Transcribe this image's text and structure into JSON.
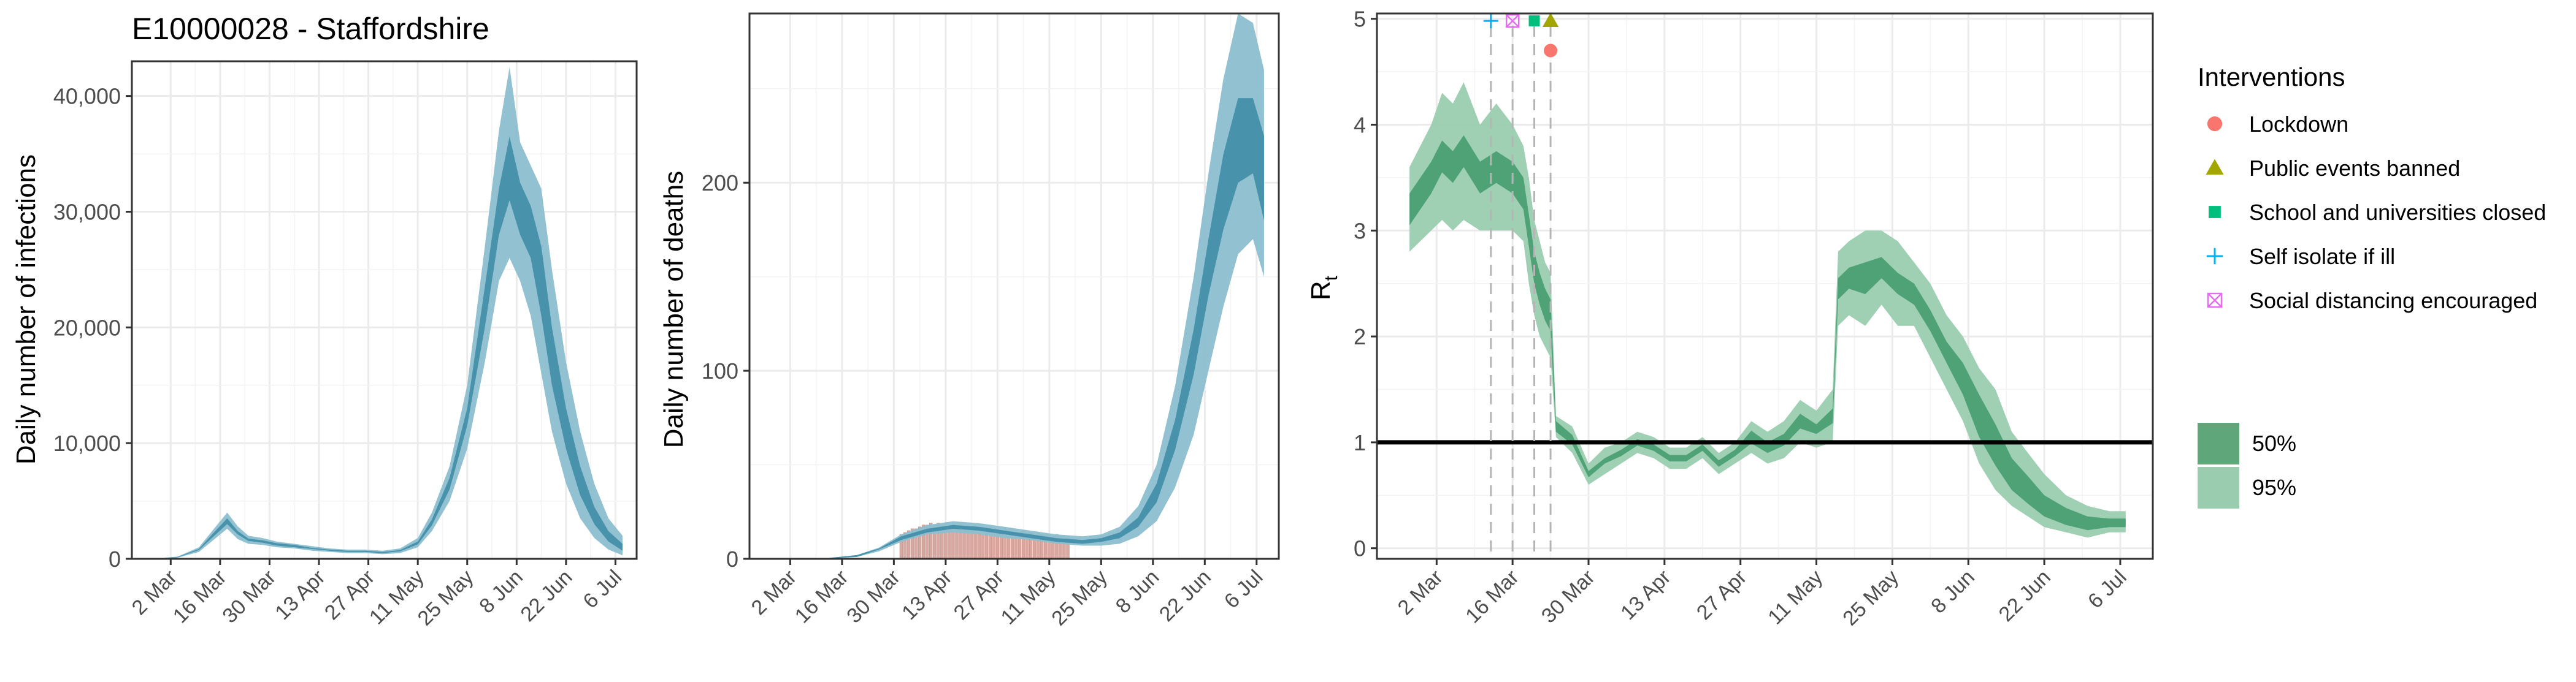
{
  "figure": {
    "title": "E10000028 - Staffordshire"
  },
  "colors": {
    "infection_dark": "#3b8aa6",
    "infection_light": "#8cbfd0",
    "death_dark": "#3b8aa6",
    "death_light": "#8cbfd0",
    "observed_bars": "#d9a8a0",
    "rt_dark": "#3f9a6a",
    "rt_light": "#9acdb0",
    "grid": "#ebebeb",
    "axis": "#333333",
    "lockdown": "#f8766d",
    "public_events": "#a3a500",
    "school": "#00bf7d",
    "self_isolate": "#00b0f6",
    "social_distancing": "#e76bf3"
  },
  "chart_data": [
    {
      "id": "infections",
      "type": "area",
      "title": "E10000028 - Staffordshire",
      "xlabel": "",
      "ylabel": "Daily number of infections",
      "x_ticks": [
        "2 Mar",
        "16 Mar",
        "30 Mar",
        "13 Apr",
        "27 Apr",
        "11 May",
        "25 May",
        "8 Jun",
        "22 Jun",
        "6 Jul"
      ],
      "xlim": [
        "2020-02-20",
        "2020-07-12"
      ],
      "ylim": [
        0,
        43000
      ],
      "y_ticks": [
        0,
        10000,
        20000,
        30000,
        40000
      ],
      "y_tick_labels": [
        "0",
        "10,000",
        "20,000",
        "30,000",
        "40,000"
      ],
      "grid": true,
      "series": [
        {
          "band": "95%",
          "x": [
            "2020-02-26",
            "2020-03-04",
            "2020-03-10",
            "2020-03-14",
            "2020-03-18",
            "2020-03-21",
            "2020-03-24",
            "2020-03-28",
            "2020-04-01",
            "2020-04-06",
            "2020-04-11",
            "2020-04-16",
            "2020-04-21",
            "2020-04-26",
            "2020-05-01",
            "2020-05-06",
            "2020-05-11",
            "2020-05-15",
            "2020-05-20",
            "2020-05-25",
            "2020-05-30",
            "2020-06-03",
            "2020-06-06",
            "2020-06-09",
            "2020-06-12",
            "2020-06-15",
            "2020-06-18",
            "2020-06-22",
            "2020-06-26",
            "2020-06-30",
            "2020-07-04",
            "2020-07-08"
          ],
          "lower": [
            0,
            100,
            600,
            1600,
            2600,
            1700,
            1300,
            1200,
            1000,
            900,
            700,
            600,
            500,
            500,
            400,
            500,
            1000,
            2400,
            5000,
            9500,
            17000,
            24000,
            26000,
            24000,
            21000,
            16000,
            11000,
            6500,
            3500,
            1800,
            800,
            300
          ],
          "upper": [
            0,
            200,
            1000,
            2500,
            4000,
            2800,
            2000,
            1800,
            1500,
            1300,
            1100,
            900,
            800,
            800,
            700,
            900,
            1800,
            4000,
            8000,
            15000,
            27000,
            37000,
            42500,
            36000,
            34000,
            32000,
            25000,
            17000,
            11000,
            6500,
            3500,
            2000
          ]
        },
        {
          "band": "50%",
          "x": [
            "2020-02-26",
            "2020-03-04",
            "2020-03-10",
            "2020-03-14",
            "2020-03-18",
            "2020-03-21",
            "2020-03-24",
            "2020-03-28",
            "2020-04-01",
            "2020-04-06",
            "2020-04-11",
            "2020-04-16",
            "2020-04-21",
            "2020-04-26",
            "2020-05-01",
            "2020-05-06",
            "2020-05-11",
            "2020-05-15",
            "2020-05-20",
            "2020-05-25",
            "2020-05-30",
            "2020-06-03",
            "2020-06-06",
            "2020-06-09",
            "2020-06-12",
            "2020-06-15",
            "2020-06-18",
            "2020-06-22",
            "2020-06-26",
            "2020-06-30",
            "2020-07-04",
            "2020-07-08"
          ],
          "lower": [
            0,
            130,
            750,
            1900,
            3000,
            2100,
            1550,
            1400,
            1150,
            1000,
            850,
            700,
            600,
            600,
            500,
            650,
            1250,
            2900,
            6000,
            11500,
            20000,
            28000,
            31000,
            28000,
            26000,
            21000,
            15000,
            9500,
            5500,
            3000,
            1500,
            700
          ],
          "upper": [
            0,
            170,
            850,
            2200,
            3500,
            2400,
            1750,
            1600,
            1350,
            1200,
            950,
            800,
            700,
            700,
            600,
            750,
            1500,
            3400,
            7000,
            13000,
            23500,
            32000,
            36500,
            32500,
            30500,
            27000,
            20000,
            13000,
            8000,
            4500,
            2400,
            1300
          ]
        }
      ]
    },
    {
      "id": "deaths",
      "type": "area",
      "xlabel": "",
      "ylabel": "Daily number of deaths",
      "x_ticks": [
        "2 Mar",
        "16 Mar",
        "30 Mar",
        "13 Apr",
        "27 Apr",
        "11 May",
        "25 May",
        "8 Jun",
        "22 Jun",
        "6 Jul"
      ],
      "xlim": [
        "2020-02-20",
        "2020-07-12"
      ],
      "ylim": [
        0,
        290
      ],
      "y_ticks": [
        0,
        100,
        200
      ],
      "y_tick_labels": [
        "0",
        "100",
        "200"
      ],
      "grid": true,
      "observed": {
        "x": [
          "2020-04-01",
          "2020-04-02",
          "2020-04-03",
          "2020-04-04",
          "2020-04-05",
          "2020-04-06",
          "2020-04-07",
          "2020-04-08",
          "2020-04-09",
          "2020-04-10",
          "2020-04-11",
          "2020-04-12",
          "2020-04-13",
          "2020-04-14",
          "2020-04-15",
          "2020-04-16",
          "2020-04-17",
          "2020-04-18",
          "2020-04-19",
          "2020-04-20",
          "2020-04-21",
          "2020-04-22",
          "2020-04-23",
          "2020-04-24",
          "2020-04-25",
          "2020-04-26",
          "2020-04-27",
          "2020-04-28",
          "2020-04-29",
          "2020-04-30",
          "2020-05-01",
          "2020-05-02",
          "2020-05-03",
          "2020-05-04",
          "2020-05-05",
          "2020-05-06",
          "2020-05-07",
          "2020-05-08",
          "2020-05-09",
          "2020-05-10",
          "2020-05-11",
          "2020-05-12",
          "2020-05-13",
          "2020-05-14",
          "2020-05-15",
          "2020-05-16"
        ],
        "values": [
          13,
          14,
          15,
          16,
          16,
          17,
          18,
          18,
          19,
          18,
          19,
          18,
          18,
          17,
          18,
          17,
          18,
          17,
          17,
          16,
          17,
          16,
          17,
          16,
          17,
          16,
          16,
          15,
          16,
          15,
          15,
          15,
          14,
          15,
          14,
          14,
          13,
          14,
          13,
          13,
          13,
          12,
          13,
          12,
          12,
          12
        ]
      },
      "series": [
        {
          "band": "95%",
          "x": [
            "2020-02-26",
            "2020-03-10",
            "2020-03-20",
            "2020-03-26",
            "2020-04-01",
            "2020-04-08",
            "2020-04-15",
            "2020-04-22",
            "2020-04-29",
            "2020-05-06",
            "2020-05-13",
            "2020-05-20",
            "2020-05-25",
            "2020-05-30",
            "2020-06-04",
            "2020-06-09",
            "2020-06-14",
            "2020-06-19",
            "2020-06-23",
            "2020-06-27",
            "2020-07-01",
            "2020-07-05",
            "2020-07-08"
          ],
          "lower": [
            0,
            0,
            1,
            4,
            9,
            13,
            14,
            13,
            11,
            10,
            8,
            7,
            7,
            8,
            12,
            20,
            38,
            66,
            100,
            134,
            162,
            170,
            150
          ],
          "upper": [
            0,
            0,
            2,
            6,
            13,
            18,
            20,
            19,
            17,
            15,
            13,
            12,
            13,
            17,
            28,
            50,
            92,
            150,
            205,
            255,
            290,
            285,
            260
          ]
        },
        {
          "band": "50%",
          "x": [
            "2020-02-26",
            "2020-03-10",
            "2020-03-20",
            "2020-03-26",
            "2020-04-01",
            "2020-04-08",
            "2020-04-15",
            "2020-04-22",
            "2020-04-29",
            "2020-05-06",
            "2020-05-13",
            "2020-05-20",
            "2020-05-25",
            "2020-05-30",
            "2020-06-04",
            "2020-06-09",
            "2020-06-14",
            "2020-06-19",
            "2020-06-23",
            "2020-06-27",
            "2020-07-01",
            "2020-07-05",
            "2020-07-08"
          ],
          "lower": [
            0,
            0,
            1,
            5,
            10,
            14,
            16,
            15,
            13,
            11,
            9,
            8,
            9,
            11,
            17,
            30,
            58,
            98,
            140,
            175,
            200,
            205,
            180
          ],
          "upper": [
            0,
            0,
            2,
            5.5,
            12,
            16,
            18,
            17,
            15,
            13,
            11,
            10,
            11,
            14,
            22,
            40,
            74,
            122,
            170,
            215,
            245,
            245,
            225
          ]
        }
      ]
    },
    {
      "id": "rt",
      "type": "area",
      "xlabel": "",
      "ylabel": "R",
      "ylabel_subscript": "t",
      "x_ticks": [
        "2 Mar",
        "16 Mar",
        "30 Mar",
        "13 Apr",
        "27 Apr",
        "11 May",
        "25 May",
        "8 Jun",
        "22 Jun",
        "6 Jul"
      ],
      "xlim": [
        "2020-02-20",
        "2020-07-12"
      ],
      "ylim": [
        -0.1,
        5.05
      ],
      "y_ticks": [
        0,
        1,
        2,
        3,
        4,
        5
      ],
      "y_tick_labels": [
        "0",
        "1",
        "2",
        "3",
        "4",
        "5"
      ],
      "reference_line": 1,
      "grid": true,
      "legend_position": "right",
      "series": [
        {
          "band": "95%",
          "x": [
            "2020-02-26",
            "2020-03-01",
            "2020-03-03",
            "2020-03-05",
            "2020-03-07",
            "2020-03-10",
            "2020-03-13",
            "2020-03-16",
            "2020-03-18",
            "2020-03-19",
            "2020-03-20",
            "2020-03-21",
            "2020-03-22",
            "2020-03-23",
            "2020-03-24",
            "2020-03-27",
            "2020-03-30",
            "2020-04-02",
            "2020-04-05",
            "2020-04-08",
            "2020-04-11",
            "2020-04-14",
            "2020-04-17",
            "2020-04-20",
            "2020-04-23",
            "2020-04-26",
            "2020-04-29",
            "2020-05-02",
            "2020-05-05",
            "2020-05-08",
            "2020-05-11",
            "2020-05-14",
            "2020-05-15",
            "2020-05-17",
            "2020-05-20",
            "2020-05-23",
            "2020-05-26",
            "2020-05-29",
            "2020-06-01",
            "2020-06-04",
            "2020-06-07",
            "2020-06-10",
            "2020-06-13",
            "2020-06-16",
            "2020-06-19",
            "2020-06-22",
            "2020-06-26",
            "2020-06-30",
            "2020-07-04",
            "2020-07-07"
          ],
          "lower": [
            2.8,
            3.0,
            3.1,
            3.0,
            3.1,
            3.0,
            3.0,
            3.0,
            2.9,
            2.5,
            2.2,
            2.0,
            1.9,
            1.8,
            1.05,
            0.9,
            0.6,
            0.7,
            0.8,
            0.9,
            0.85,
            0.75,
            0.75,
            0.85,
            0.7,
            0.8,
            0.9,
            0.8,
            0.85,
            1.0,
            0.95,
            1.0,
            2.1,
            2.2,
            2.1,
            2.3,
            2.1,
            2.1,
            1.8,
            1.5,
            1.2,
            0.8,
            0.55,
            0.4,
            0.3,
            0.2,
            0.15,
            0.1,
            0.15,
            0.15
          ],
          "upper": [
            3.6,
            4.0,
            4.3,
            4.2,
            4.4,
            4.0,
            4.2,
            4.0,
            3.8,
            3.5,
            3.1,
            2.9,
            2.7,
            2.6,
            1.25,
            1.15,
            0.8,
            0.95,
            1.0,
            1.1,
            1.05,
            0.95,
            0.95,
            1.05,
            0.9,
            1.0,
            1.2,
            1.1,
            1.2,
            1.4,
            1.3,
            1.5,
            2.8,
            2.9,
            3.0,
            3.0,
            2.9,
            2.7,
            2.5,
            2.2,
            2.0,
            1.7,
            1.5,
            1.1,
            0.9,
            0.7,
            0.5,
            0.4,
            0.35,
            0.35
          ]
        },
        {
          "band": "50%",
          "x": [
            "2020-02-26",
            "2020-03-01",
            "2020-03-03",
            "2020-03-05",
            "2020-03-07",
            "2020-03-10",
            "2020-03-13",
            "2020-03-16",
            "2020-03-18",
            "2020-03-19",
            "2020-03-20",
            "2020-03-21",
            "2020-03-22",
            "2020-03-23",
            "2020-03-24",
            "2020-03-27",
            "2020-03-30",
            "2020-04-02",
            "2020-04-05",
            "2020-04-08",
            "2020-04-11",
            "2020-04-14",
            "2020-04-17",
            "2020-04-20",
            "2020-04-23",
            "2020-04-26",
            "2020-04-29",
            "2020-05-02",
            "2020-05-05",
            "2020-05-08",
            "2020-05-11",
            "2020-05-14",
            "2020-05-15",
            "2020-05-17",
            "2020-05-20",
            "2020-05-23",
            "2020-05-26",
            "2020-05-29",
            "2020-06-01",
            "2020-06-04",
            "2020-06-07",
            "2020-06-10",
            "2020-06-13",
            "2020-06-16",
            "2020-06-19",
            "2020-06-22",
            "2020-06-26",
            "2020-06-30",
            "2020-07-04",
            "2020-07-07"
          ],
          "lower": [
            3.05,
            3.35,
            3.55,
            3.45,
            3.6,
            3.35,
            3.45,
            3.35,
            3.2,
            2.85,
            2.5,
            2.3,
            2.15,
            2.05,
            1.1,
            0.98,
            0.67,
            0.8,
            0.87,
            0.97,
            0.92,
            0.82,
            0.82,
            0.92,
            0.77,
            0.87,
            0.99,
            0.9,
            0.97,
            1.13,
            1.08,
            1.18,
            2.35,
            2.45,
            2.4,
            2.55,
            2.4,
            2.3,
            2.05,
            1.75,
            1.45,
            1.05,
            0.78,
            0.55,
            0.42,
            0.3,
            0.22,
            0.17,
            0.2,
            0.2
          ],
          "upper": [
            3.35,
            3.65,
            3.85,
            3.75,
            3.9,
            3.65,
            3.75,
            3.65,
            3.5,
            3.15,
            2.8,
            2.6,
            2.45,
            2.35,
            1.2,
            1.07,
            0.73,
            0.85,
            0.93,
            1.03,
            0.98,
            0.88,
            0.88,
            0.98,
            0.83,
            0.93,
            1.11,
            1.0,
            1.08,
            1.27,
            1.17,
            1.32,
            2.55,
            2.65,
            2.7,
            2.75,
            2.6,
            2.5,
            2.25,
            1.95,
            1.75,
            1.45,
            1.17,
            0.85,
            0.68,
            0.5,
            0.38,
            0.3,
            0.28,
            0.28
          ]
        }
      ],
      "interventions": [
        {
          "label": "Lockdown",
          "date": "2020-03-23",
          "marker": "circle",
          "color": "#f8766d",
          "y": 4.7
        },
        {
          "label": "Public events banned",
          "date": "2020-03-23",
          "marker": "triangle",
          "color": "#a3a500",
          "y": 4.98
        },
        {
          "label": "School and universities closed",
          "date": "2020-03-20",
          "marker": "square",
          "color": "#00bf7d",
          "y": 4.98
        },
        {
          "label": "Self isolate if ill",
          "date": "2020-03-12",
          "marker": "plus",
          "color": "#00b0f6",
          "y": 4.98
        },
        {
          "label": "Social distancing encouraged",
          "date": "2020-03-16",
          "marker": "boxed-x",
          "color": "#e76bf3",
          "y": 4.98
        }
      ]
    }
  ],
  "legend": {
    "interventions_title": "Interventions",
    "items": [
      {
        "label": "Lockdown",
        "marker": "circle",
        "color": "#f8766d"
      },
      {
        "label": "Public events banned",
        "marker": "triangle",
        "color": "#a3a500"
      },
      {
        "label": "School and universities closed",
        "marker": "square",
        "color": "#00bf7d"
      },
      {
        "label": "Self isolate if ill",
        "marker": "plus",
        "color": "#00b0f6"
      },
      {
        "label": "Social distancing encouraged",
        "marker": "boxed-x",
        "color": "#e76bf3"
      }
    ],
    "bands": [
      {
        "label": "50%",
        "color": "#5fa67b"
      },
      {
        "label": "95%",
        "color": "#9acdb0"
      }
    ]
  }
}
